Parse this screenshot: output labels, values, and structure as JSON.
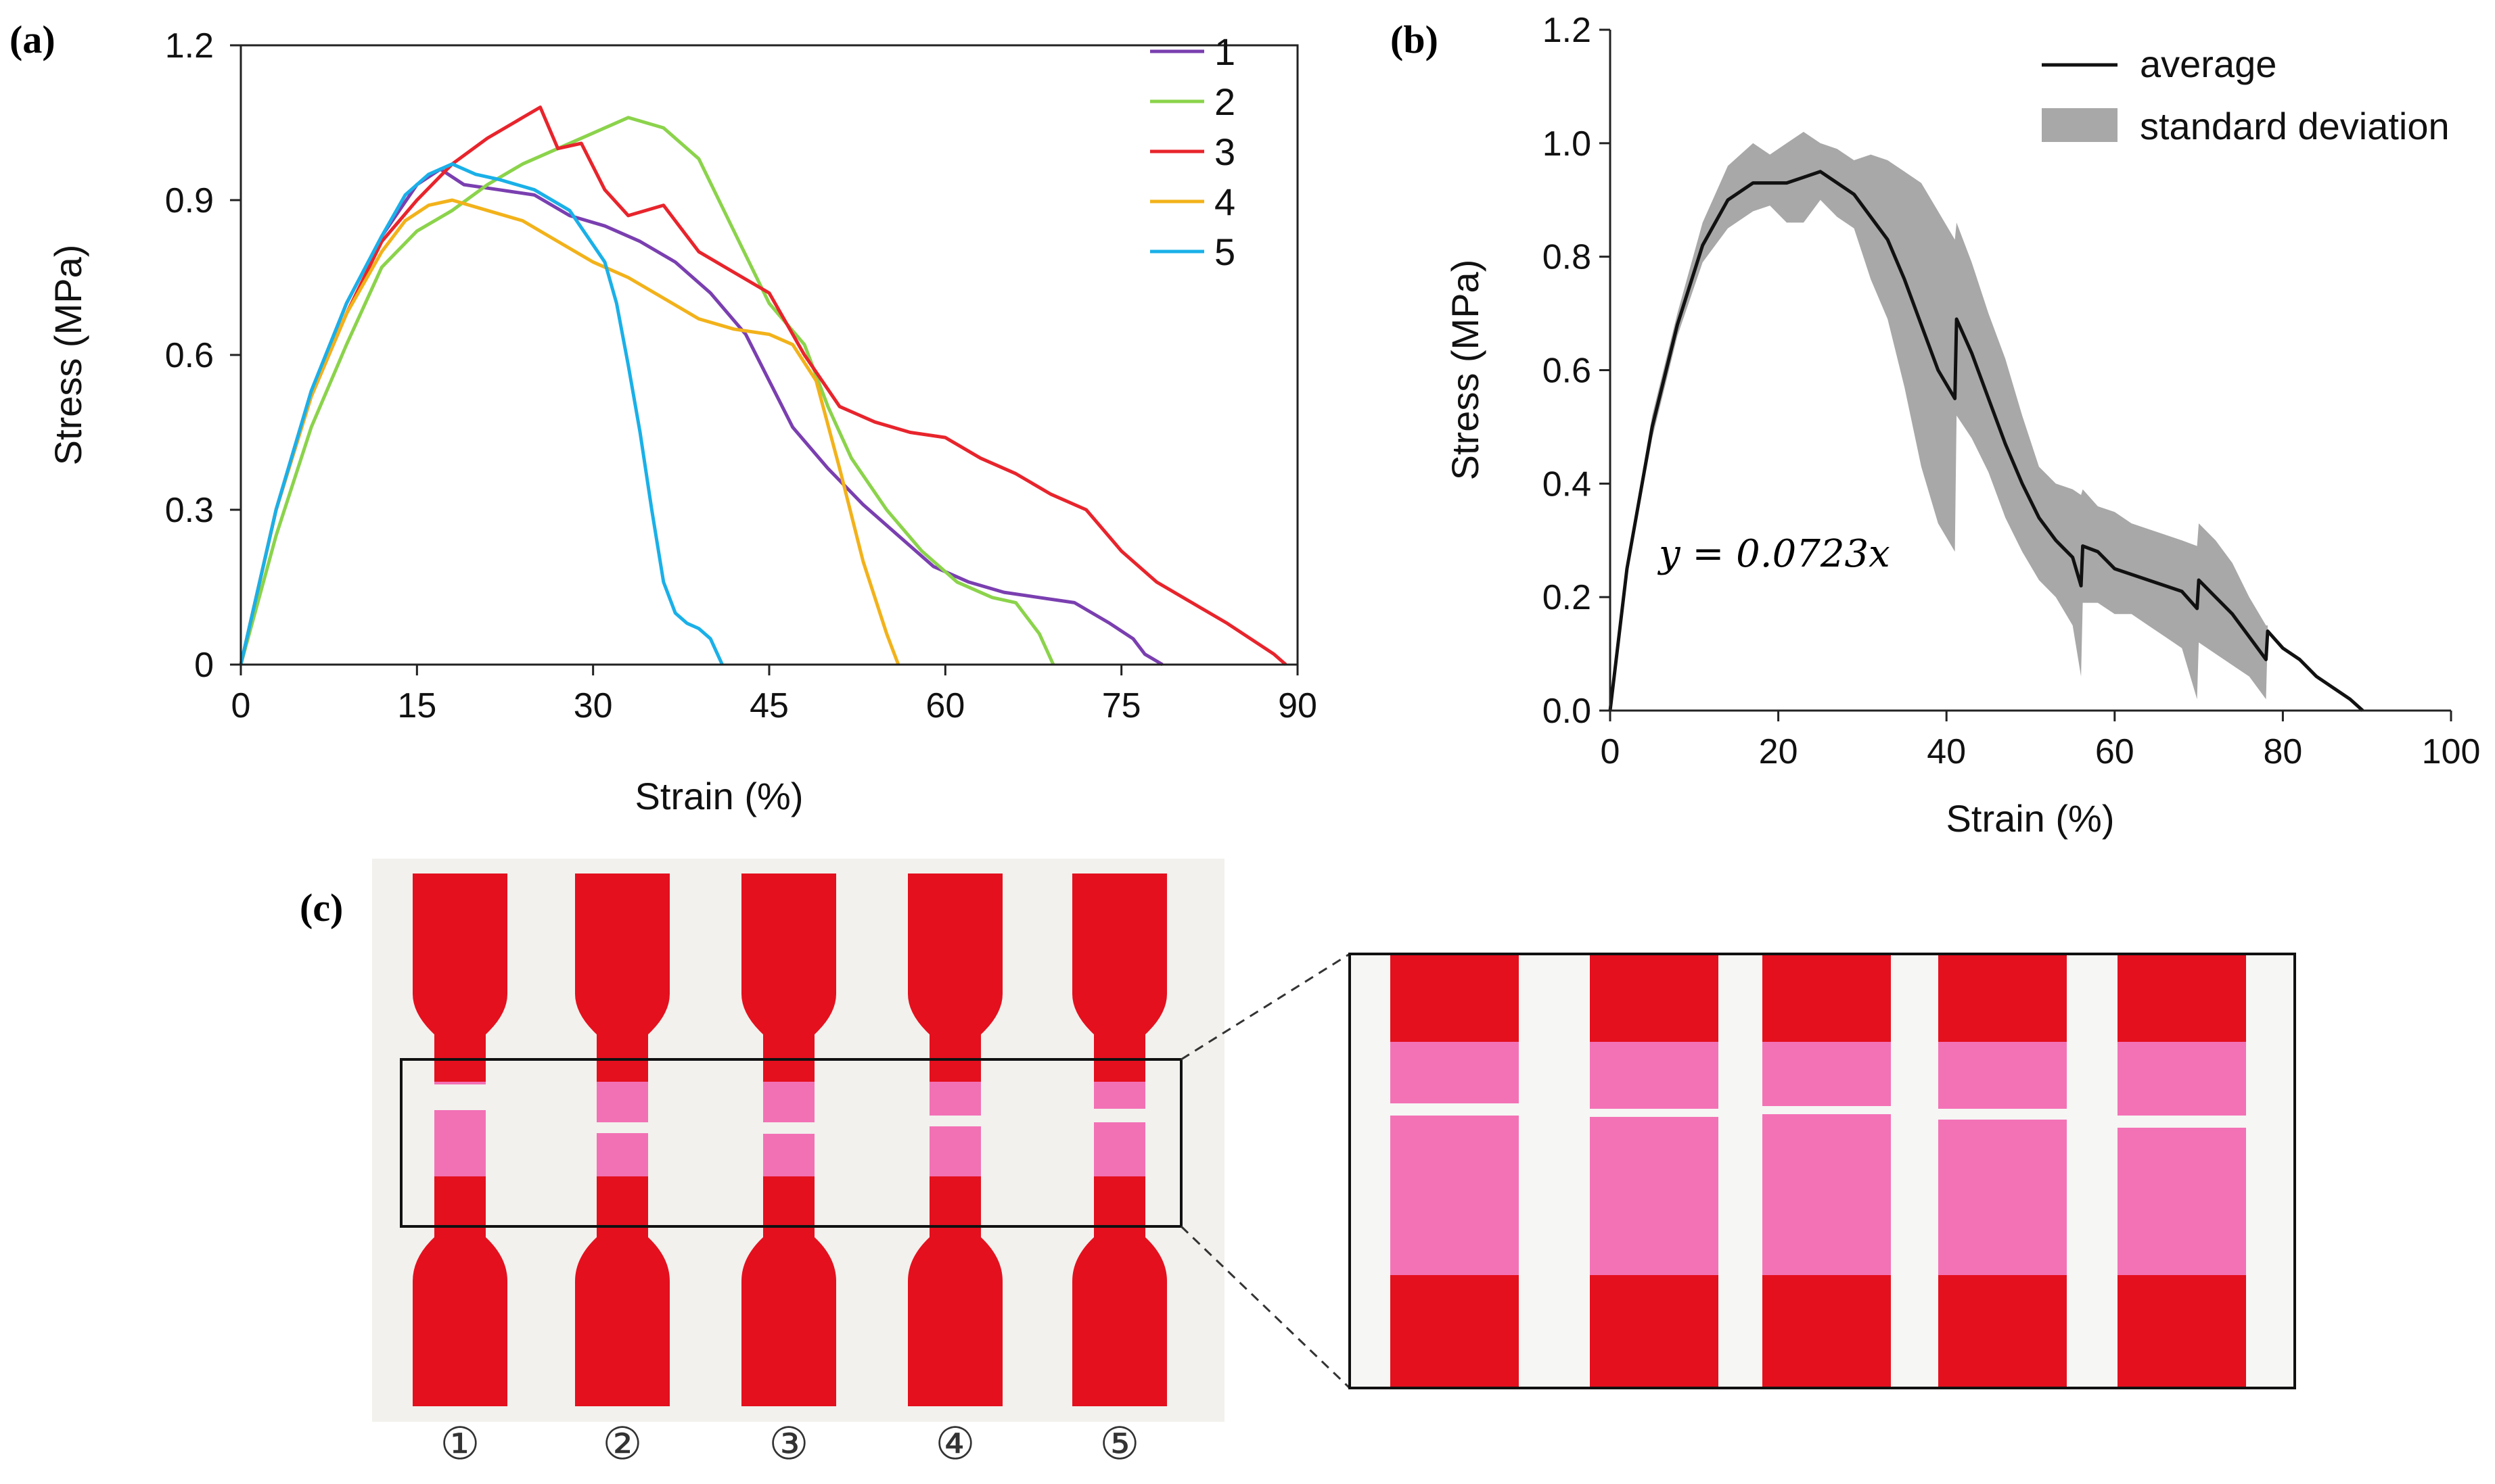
{
  "panels": {
    "a": "(a)",
    "b": "(b)",
    "c": "(c)"
  },
  "chart_data": [
    {
      "type": "line",
      "panel": "(a)",
      "xlabel": "Strain (%)",
      "ylabel": "Stress (MPa)",
      "xlim": [
        0,
        90
      ],
      "ylim": [
        0,
        1.2
      ],
      "xticks": [
        0,
        15,
        30,
        45,
        60,
        75,
        90
      ],
      "yticks": [
        0,
        0.3,
        0.6,
        0.9,
        1.2
      ],
      "xtick_labels": [
        "0",
        "15",
        "30",
        "45",
        "60",
        "75",
        "90"
      ],
      "ytick_labels": [
        "0",
        "0.3",
        "0.6",
        "0.9",
        "1.2"
      ],
      "legend_position": "top-right",
      "series": [
        {
          "name": "1",
          "color": "#7a3fb0",
          "x": [
            0,
            3,
            6,
            9,
            12,
            15,
            17,
            19,
            22,
            25,
            28,
            31,
            34,
            37,
            40,
            43,
            45,
            47,
            50,
            53,
            56,
            59,
            62,
            65,
            68,
            71,
            74,
            76,
            77,
            78.5
          ],
          "y": [
            0,
            0.3,
            0.53,
            0.7,
            0.83,
            0.93,
            0.96,
            0.93,
            0.92,
            0.91,
            0.87,
            0.85,
            0.82,
            0.78,
            0.72,
            0.64,
            0.55,
            0.46,
            0.38,
            0.31,
            0.25,
            0.19,
            0.16,
            0.14,
            0.13,
            0.12,
            0.08,
            0.05,
            0.02,
            0
          ]
        },
        {
          "name": "2",
          "color": "#8bd34b",
          "x": [
            0,
            3,
            6,
            9,
            12,
            15,
            18,
            21,
            24,
            27,
            30,
            33,
            36,
            39,
            42,
            45,
            48,
            50,
            52,
            55,
            58,
            61,
            64,
            66,
            68,
            69.2
          ],
          "y": [
            0,
            0.25,
            0.46,
            0.62,
            0.77,
            0.84,
            0.88,
            0.93,
            0.97,
            1.0,
            1.03,
            1.06,
            1.04,
            0.98,
            0.84,
            0.7,
            0.62,
            0.5,
            0.4,
            0.3,
            0.22,
            0.16,
            0.13,
            0.12,
            0.06,
            0
          ]
        },
        {
          "name": "3",
          "color": "#e8242c",
          "x": [
            0,
            3,
            6,
            9,
            12,
            15,
            18,
            21,
            24,
            25.5,
            27,
            29,
            31,
            33,
            36,
            39,
            42,
            45,
            48,
            51,
            54,
            57,
            60,
            63,
            66,
            69,
            72,
            75,
            78,
            81,
            84,
            86,
            88,
            89
          ],
          "y": [
            0,
            0.3,
            0.52,
            0.68,
            0.82,
            0.9,
            0.97,
            1.02,
            1.06,
            1.08,
            1.0,
            1.01,
            0.92,
            0.87,
            0.89,
            0.8,
            0.76,
            0.72,
            0.6,
            0.5,
            0.47,
            0.45,
            0.44,
            0.4,
            0.37,
            0.33,
            0.3,
            0.22,
            0.16,
            0.12,
            0.08,
            0.05,
            0.02,
            0
          ]
        },
        {
          "name": "4",
          "color": "#f2b21a",
          "x": [
            0,
            3,
            6,
            9,
            12,
            14,
            16,
            18,
            21,
            24,
            27,
            30,
            33,
            36,
            39,
            42,
            45,
            47,
            49,
            51,
            53,
            55,
            56
          ],
          "y": [
            0,
            0.3,
            0.52,
            0.68,
            0.8,
            0.86,
            0.89,
            0.9,
            0.88,
            0.86,
            0.82,
            0.78,
            0.75,
            0.71,
            0.67,
            0.65,
            0.64,
            0.62,
            0.55,
            0.38,
            0.2,
            0.06,
            0
          ]
        },
        {
          "name": "5",
          "color": "#1ab0e8",
          "x": [
            0,
            3,
            6,
            9,
            12,
            14,
            16,
            18,
            20,
            22,
            25,
            28,
            31,
            32,
            33,
            34,
            35,
            36,
            37,
            38,
            39,
            40,
            41
          ],
          "y": [
            0,
            0.3,
            0.53,
            0.7,
            0.83,
            0.91,
            0.95,
            0.97,
            0.95,
            0.94,
            0.92,
            0.88,
            0.78,
            0.7,
            0.58,
            0.45,
            0.3,
            0.16,
            0.1,
            0.08,
            0.07,
            0.05,
            0
          ]
        }
      ]
    },
    {
      "type": "line",
      "panel": "(b)",
      "xlabel": "Strain (%)",
      "ylabel": "Stress (MPa)",
      "xlim": [
        0,
        100
      ],
      "ylim": [
        0,
        1.2
      ],
      "xticks": [
        0,
        20,
        40,
        60,
        80,
        100
      ],
      "yticks": [
        0.0,
        0.2,
        0.4,
        0.6,
        0.8,
        1.0,
        1.2
      ],
      "xtick_labels": [
        "0",
        "20",
        "40",
        "60",
        "80",
        "100"
      ],
      "ytick_labels": [
        "0.0",
        "0.2",
        "0.4",
        "0.6",
        "0.8",
        "1.0",
        "1.2"
      ],
      "legend_position": "top-right",
      "annotation": "y = 0.0723x",
      "series": [
        {
          "name": "average",
          "color": "#111111",
          "x": [
            0,
            2,
            5,
            8,
            11,
            14,
            17,
            19,
            21,
            23,
            25,
            27,
            29,
            31,
            33,
            35,
            37,
            39,
            41,
            41.2,
            43,
            45,
            47,
            49,
            51,
            53,
            55,
            56,
            56.2,
            58,
            60,
            62,
            64,
            66,
            68,
            69.8,
            70,
            72,
            74,
            76,
            78,
            78.2,
            80,
            82,
            84,
            86,
            88,
            89.5
          ],
          "y": [
            0,
            0.25,
            0.5,
            0.68,
            0.82,
            0.9,
            0.93,
            0.93,
            0.93,
            0.94,
            0.95,
            0.93,
            0.91,
            0.87,
            0.83,
            0.76,
            0.68,
            0.6,
            0.55,
            0.69,
            0.63,
            0.55,
            0.47,
            0.4,
            0.34,
            0.3,
            0.27,
            0.22,
            0.29,
            0.28,
            0.25,
            0.24,
            0.23,
            0.22,
            0.21,
            0.18,
            0.23,
            0.2,
            0.17,
            0.13,
            0.09,
            0.14,
            0.11,
            0.09,
            0.06,
            0.04,
            0.02,
            0
          ]
        },
        {
          "name": "standard deviation",
          "color": "#a8a8a8",
          "x": [
            0,
            2,
            5,
            8,
            11,
            14,
            17,
            19,
            21,
            23,
            25,
            27,
            29,
            31,
            33,
            35,
            37,
            39,
            41,
            41.2,
            43,
            45,
            47,
            49,
            51,
            53,
            55,
            56,
            56.2,
            58,
            60,
            62,
            64,
            66,
            68,
            69.8,
            70,
            72,
            74,
            76,
            78,
            78.2
          ],
          "upper": [
            0,
            0.26,
            0.52,
            0.7,
            0.86,
            0.96,
            1.0,
            0.98,
            1.0,
            1.02,
            1.0,
            0.99,
            0.97,
            0.98,
            0.97,
            0.95,
            0.93,
            0.88,
            0.83,
            0.86,
            0.79,
            0.7,
            0.62,
            0.52,
            0.43,
            0.4,
            0.39,
            0.38,
            0.39,
            0.36,
            0.35,
            0.33,
            0.32,
            0.31,
            0.3,
            0.29,
            0.33,
            0.3,
            0.26,
            0.2,
            0.15,
            0.15
          ],
          "lower": [
            0,
            0.24,
            0.48,
            0.66,
            0.79,
            0.85,
            0.88,
            0.89,
            0.86,
            0.86,
            0.9,
            0.87,
            0.85,
            0.76,
            0.69,
            0.57,
            0.43,
            0.33,
            0.28,
            0.52,
            0.48,
            0.42,
            0.34,
            0.28,
            0.23,
            0.2,
            0.15,
            0.06,
            0.19,
            0.19,
            0.17,
            0.17,
            0.15,
            0.13,
            0.11,
            0.02,
            0.12,
            0.1,
            0.08,
            0.06,
            0.02,
            0.13
          ]
        }
      ]
    }
  ],
  "photo_c": {
    "specimen_labels": [
      "①",
      "②",
      "③",
      "④",
      "⑤"
    ],
    "colors": {
      "red": "#e4101e",
      "pink": "#f25aaa",
      "bg": "#f2f1ed"
    }
  }
}
